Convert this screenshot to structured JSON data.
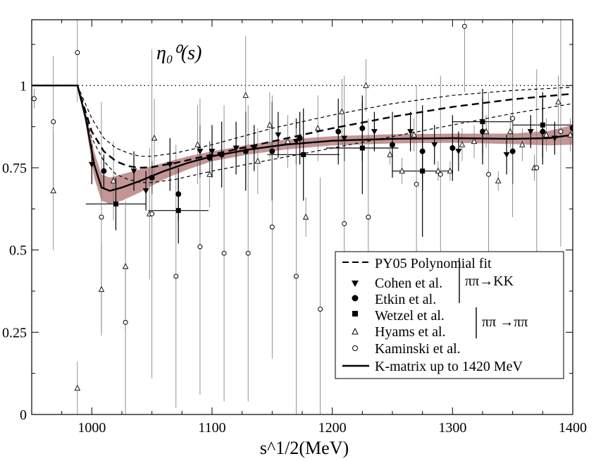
{
  "chart_data": {
    "type": "scatter",
    "title": "η₀⁰(s)",
    "xlabel": "s^1/2(MeV)",
    "ylabel": "",
    "xlim": [
      950,
      1400
    ],
    "ylim": [
      0,
      1.2
    ],
    "xticks": [
      1000,
      1100,
      1200,
      1300,
      1400
    ],
    "yticks": [
      0,
      0.25,
      0.5,
      0.75,
      1
    ],
    "ytick_labels": [
      "0",
      "0.25",
      "0.5",
      "0.75",
      "1"
    ],
    "grid": false,
    "legend_position": "bottom-right",
    "reference_line": 1,
    "legend": {
      "py05": "PY05 Polynomial fit",
      "cohen": "Cohen et al.",
      "etkin": "Etkin et al.",
      "wetzel": "Wetzel et al.",
      "hyams": "Hyams et al.",
      "kaminski": "Kaminski et al.",
      "kmatrix": "K-matrix up to 1420 MeV",
      "group1": "ππ→KK",
      "group2": "ππ →ππ"
    },
    "series": [
      {
        "name": "PY05 Polynomial fit",
        "kind": "line",
        "style": "dashed",
        "x": [
          950,
          988,
          1000,
          1010,
          1020,
          1030,
          1040,
          1050,
          1070,
          1100,
          1150,
          1200,
          1250,
          1300,
          1350,
          1400
        ],
        "y": [
          1.0,
          1.0,
          0.86,
          0.8,
          0.77,
          0.755,
          0.75,
          0.752,
          0.765,
          0.79,
          0.83,
          0.87,
          0.905,
          0.935,
          0.958,
          0.975
        ]
      },
      {
        "name": "PY05 band upper",
        "kind": "line",
        "style": "thin-dashed",
        "x": [
          988,
          1000,
          1010,
          1020,
          1030,
          1040,
          1050,
          1070,
          1100,
          1150,
          1200,
          1250,
          1300,
          1350,
          1400
        ],
        "y": [
          1.0,
          0.9,
          0.84,
          0.81,
          0.795,
          0.785,
          0.785,
          0.795,
          0.82,
          0.87,
          0.91,
          0.945,
          0.97,
          0.985,
          0.995
        ]
      },
      {
        "name": "PY05 band lower",
        "kind": "line",
        "style": "thin-dashed",
        "x": [
          988,
          1000,
          1010,
          1020,
          1030,
          1040,
          1050,
          1070,
          1100,
          1150,
          1200,
          1250,
          1300,
          1350,
          1400
        ],
        "y": [
          1.0,
          0.84,
          0.77,
          0.73,
          0.715,
          0.705,
          0.705,
          0.715,
          0.74,
          0.775,
          0.81,
          0.845,
          0.88,
          0.915,
          0.945
        ]
      },
      {
        "name": "K-matrix up to 1420 MeV",
        "kind": "line",
        "style": "solid",
        "x": [
          950,
          988,
          995,
          1002,
          1008,
          1015,
          1025,
          1040,
          1060,
          1080,
          1100,
          1130,
          1160,
          1200,
          1250,
          1300,
          1350,
          1380,
          1400
        ],
        "y": [
          1.0,
          1.0,
          0.9,
          0.76,
          0.69,
          0.68,
          0.69,
          0.71,
          0.74,
          0.765,
          0.785,
          0.805,
          0.82,
          0.832,
          0.838,
          0.84,
          0.838,
          0.84,
          0.85
        ],
        "band_upper": [
          1.0,
          1.0,
          0.92,
          0.8,
          0.73,
          0.72,
          0.73,
          0.745,
          0.765,
          0.785,
          0.8,
          0.82,
          0.835,
          0.846,
          0.852,
          0.854,
          0.854,
          0.862,
          0.88
        ],
        "band_lower": [
          1.0,
          1.0,
          0.88,
          0.72,
          0.65,
          0.64,
          0.65,
          0.675,
          0.715,
          0.745,
          0.77,
          0.79,
          0.805,
          0.818,
          0.824,
          0.826,
          0.822,
          0.818,
          0.82
        ]
      },
      {
        "name": "Cohen et al.",
        "marker": "triangle-down",
        "x": [
          1000,
          1035,
          1045,
          1065,
          1090,
          1100,
          1120,
          1135,
          1155,
          1170,
          1210,
          1235,
          1265,
          1285,
          1305,
          1345,
          1365,
          1385
        ],
        "y": [
          0.76,
          0.74,
          0.68,
          0.76,
          0.8,
          0.8,
          0.81,
          0.81,
          0.85,
          0.83,
          0.84,
          0.86,
          0.86,
          0.82,
          0.8,
          0.79,
          0.86,
          0.84
        ],
        "err": [
          0.06,
          0.06,
          0.06,
          0.08,
          0.08,
          0.08,
          0.08,
          0.07,
          0.07,
          0.07,
          0.07,
          0.06,
          0.06,
          0.06,
          0.06,
          0.06,
          0.05,
          0.05
        ]
      },
      {
        "name": "Etkin et al.",
        "marker": "circle",
        "x": [
          1010,
          1050,
          1072,
          1098,
          1108,
          1128,
          1150,
          1173,
          1205,
          1225,
          1250,
          1275,
          1300,
          1325,
          1350,
          1375,
          1400
        ],
        "y": [
          0.74,
          0.72,
          0.67,
          0.78,
          0.79,
          0.8,
          0.8,
          0.84,
          0.86,
          0.87,
          0.82,
          0.8,
          0.81,
          0.86,
          0.8,
          0.86,
          0.87
        ],
        "err": [
          0.05,
          0.05,
          0.08,
          0.05,
          0.1,
          0.12,
          0.15,
          0.08,
          0.1,
          0.1,
          0.1,
          0.12,
          0.1,
          0.1,
          0.1,
          0.1,
          0.12
        ]
      },
      {
        "name": "Wetzel et al.",
        "marker": "square",
        "x": [
          1020,
          1072,
          1176,
          1225,
          1275,
          1325,
          1375
        ],
        "y": [
          0.64,
          0.62,
          0.79,
          0.81,
          0.74,
          0.89,
          0.88
        ],
        "err": [
          0.08,
          0.1,
          0.14,
          0.14,
          0.2,
          0.1,
          0.1
        ],
        "xerr": [
          25,
          25,
          30,
          30,
          25,
          25,
          25
        ]
      },
      {
        "name": "Hyams et al.",
        "marker": "triangle-up",
        "x": [
          968,
          988,
          1008,
          1018,
          1028,
          1048,
          1052,
          1088,
          1098,
          1128,
          1138,
          1148,
          1163,
          1178,
          1188,
          1208,
          1228,
          1248,
          1258,
          1268,
          1288,
          1298,
          1308,
          1318,
          1328,
          1338,
          1348,
          1358,
          1368,
          1378,
          1388,
          1398
        ],
        "y": [
          0.68,
          0.08,
          0.38,
          0.71,
          0.45,
          0.61,
          0.84,
          0.82,
          0.73,
          0.97,
          0.77,
          0.88,
          0.83,
          0.6,
          0.87,
          0.92,
          1.0,
          0.79,
          0.74,
          0.85,
          0.74,
          0.74,
          0.82,
          0.83,
          0.86,
          0.71,
          0.86,
          0.82,
          0.75,
          0.85,
          0.95,
          0.85
        ],
        "err": [
          0.18,
          0.08,
          0.14,
          0.12,
          0.2,
          0.2,
          0.12,
          0.12,
          0.1,
          0.18,
          0.1,
          0.1,
          0.08,
          0.06,
          0.1,
          0.1,
          0.08,
          0.03,
          0.04,
          0.05,
          0.03,
          0.03,
          0.05,
          0.05,
          0.05,
          0.03,
          0.05,
          0.05,
          0.04,
          0.05,
          0.08,
          0.05
        ]
      },
      {
        "name": "Kaminski et al.",
        "marker": "circle-open",
        "x": [
          952,
          968,
          988,
          1008,
          1028,
          1050,
          1070,
          1090,
          1110,
          1130,
          1150,
          1170,
          1190,
          1210,
          1230,
          1270,
          1290,
          1310,
          1330,
          1350,
          1370,
          1390
        ],
        "y": [
          0.96,
          0.89,
          1.1,
          0.6,
          0.28,
          0.61,
          0.42,
          0.51,
          0.49,
          0.49,
          0.57,
          0.42,
          0.32,
          0.58,
          0.6,
          0.7,
          0.73,
          1.18,
          0.73,
          0.9,
          0.75,
          0.86
        ],
        "err": [
          0.03,
          0.2,
          0.15,
          0.35,
          0.35,
          0.5,
          0.4,
          0.45,
          0.45,
          0.45,
          0.4,
          0.45,
          0.4,
          0.45,
          0.3,
          0.3,
          0.3,
          0.2,
          0.25,
          0.3,
          0.3,
          0.35
        ]
      }
    ]
  }
}
